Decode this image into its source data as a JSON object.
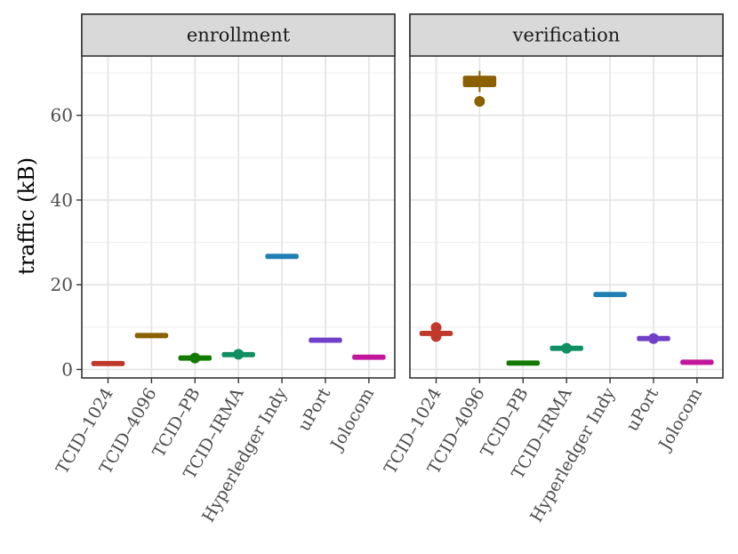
{
  "chart_data": {
    "type": "boxplot",
    "ylabel": "traffic (kB)",
    "xlabel": "",
    "ylim": [
      -2,
      74
    ],
    "yticks": [
      0,
      20,
      40,
      60
    ],
    "categories": [
      "TCID–1024",
      "TCID–4096",
      "TCID–PB",
      "TCID–IRMA",
      "Hyperledger Indy",
      "uPort",
      "Jolocom"
    ],
    "colors": [
      "#c0392b",
      "#8b6000",
      "#137a00",
      "#0f8f62",
      "#1f7fb4",
      "#7040c8",
      "#c4169c"
    ],
    "panels": [
      {
        "name": "enrollment",
        "boxes": [
          {
            "q1": 1.2,
            "median": 1.4,
            "q3": 1.6,
            "wlo": 1.1,
            "whi": 1.7,
            "outliers": []
          },
          {
            "q1": 7.8,
            "median": 8.0,
            "q3": 8.2,
            "wlo": 7.7,
            "whi": 8.3,
            "outliers": []
          },
          {
            "q1": 2.5,
            "median": 2.7,
            "q3": 2.9,
            "wlo": 2.4,
            "whi": 3.0,
            "outliers": [
              2.7
            ]
          },
          {
            "q1": 3.3,
            "median": 3.5,
            "q3": 3.7,
            "wlo": 3.2,
            "whi": 3.8,
            "outliers": [
              3.6
            ]
          },
          {
            "q1": 26.5,
            "median": 26.7,
            "q3": 26.9,
            "wlo": 26.4,
            "whi": 27.0,
            "outliers": []
          },
          {
            "q1": 6.7,
            "median": 6.9,
            "q3": 7.1,
            "wlo": 6.6,
            "whi": 7.2,
            "outliers": []
          },
          {
            "q1": 2.7,
            "median": 2.9,
            "q3": 3.1,
            "wlo": 2.6,
            "whi": 3.2,
            "outliers": []
          }
        ]
      },
      {
        "name": "verification",
        "boxes": [
          {
            "q1": 8.2,
            "median": 8.5,
            "q3": 8.8,
            "wlo": 7.9,
            "whi": 9.0,
            "outliers": [
              7.8,
              9.9
            ]
          },
          {
            "q1": 66.8,
            "median": 68.0,
            "q3": 69.2,
            "wlo": 65.5,
            "whi": 70.5,
            "outliers": [
              63.3
            ]
          },
          {
            "q1": 1.3,
            "median": 1.5,
            "q3": 1.7,
            "wlo": 1.2,
            "whi": 1.8,
            "outliers": []
          },
          {
            "q1": 4.7,
            "median": 5.0,
            "q3": 5.3,
            "wlo": 4.6,
            "whi": 5.4,
            "outliers": [
              5.0
            ]
          },
          {
            "q1": 17.5,
            "median": 17.7,
            "q3": 17.9,
            "wlo": 17.4,
            "whi": 18.0,
            "outliers": []
          },
          {
            "q1": 7.0,
            "median": 7.3,
            "q3": 7.6,
            "wlo": 6.9,
            "whi": 7.7,
            "outliers": [
              7.3
            ]
          },
          {
            "q1": 1.5,
            "median": 1.7,
            "q3": 1.9,
            "wlo": 1.4,
            "whi": 2.0,
            "outliers": []
          }
        ]
      }
    ]
  }
}
